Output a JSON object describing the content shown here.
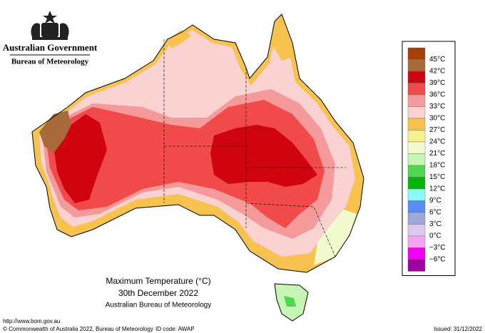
{
  "header": {
    "government": "Australian Government",
    "agency": "Bureau of Meteorology"
  },
  "map": {
    "title": "Maximum Temperature (°C)",
    "date": "30th December 2022",
    "source": "Australian Bureau of Meteorology"
  },
  "legend": [
    {
      "label": "45°C",
      "color": "#a5400b"
    },
    {
      "label": "42°C",
      "color": "#a86a3a"
    },
    {
      "label": "39°C",
      "color": "#d0040e"
    },
    {
      "label": "36°C",
      "color": "#f04a4a"
    },
    {
      "label": "33°C",
      "color": "#f59a9a"
    },
    {
      "label": "30°C",
      "color": "#fbd2d2"
    },
    {
      "label": "27°C",
      "color": "#f8c24e"
    },
    {
      "label": "24°C",
      "color": "#f7f08c"
    },
    {
      "label": "21°C",
      "color": "#f1fbcd"
    },
    {
      "label": "18°C",
      "color": "#c6f5b6"
    },
    {
      "label": "15°C",
      "color": "#4fd84f"
    },
    {
      "label": "12°C",
      "color": "#08b408"
    },
    {
      "label": "9°C",
      "color": "#8ef8f8"
    },
    {
      "label": "6°C",
      "color": "#5a8cf2"
    },
    {
      "label": "3°C",
      "color": "#9ea8da"
    },
    {
      "label": "0°C",
      "color": "#dcc8ee"
    },
    {
      "label": "−3°C",
      "color": "#f8a4f4"
    },
    {
      "label": "−6°C",
      "color": "#f000f0"
    },
    {
      "label": "",
      "color": "#a000a0"
    }
  ],
  "footer": {
    "url": "http://www.bom.gov.au",
    "copyright": "© Commonwealth of Australia 2022, Bureau of Meteorology",
    "id_code": "ID code: AWAP",
    "issued": "Issued: 31/12/2022"
  }
}
